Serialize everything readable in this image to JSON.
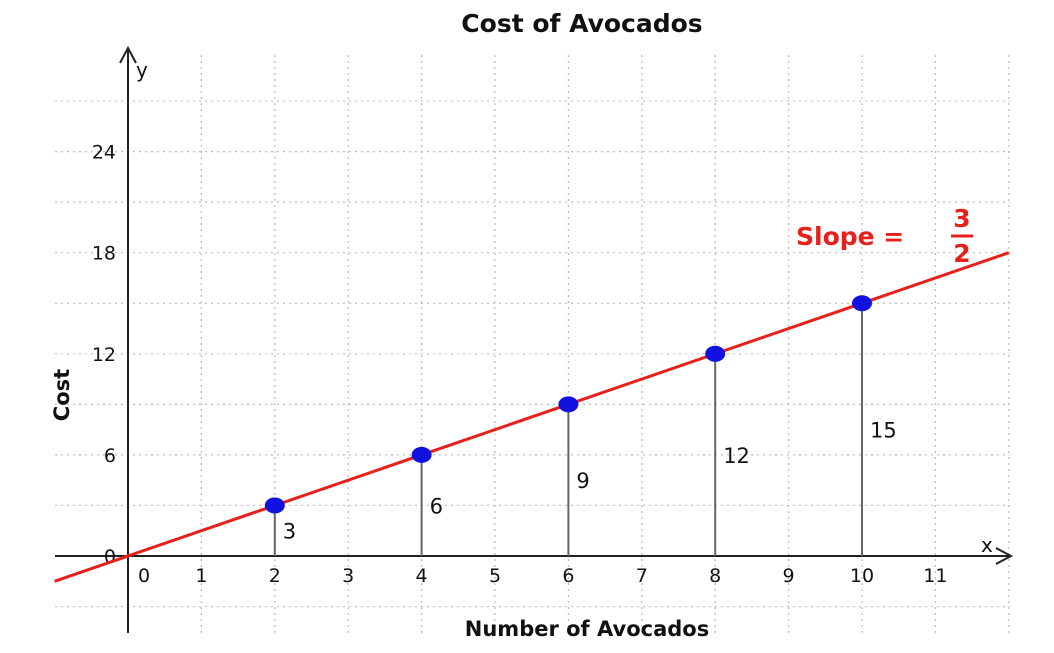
{
  "chart_data": {
    "type": "scatter",
    "title": "Cost of Avocados",
    "xlabel": "Number of Avocados",
    "ylabel": "Cost",
    "x_axis_name": "x",
    "y_axis_name": "y",
    "xlim": [
      -1,
      12
    ],
    "ylim": [
      -4,
      29
    ],
    "x_ticks": [
      0,
      1,
      2,
      3,
      4,
      5,
      6,
      7,
      8,
      9,
      10,
      11
    ],
    "y_ticks": [
      0,
      6,
      12,
      18,
      24
    ],
    "grid_x": [
      1,
      2,
      3,
      4,
      5,
      6,
      7,
      8,
      9,
      10,
      11,
      12
    ],
    "grid_y": [
      -3,
      3,
      6,
      9,
      12,
      15,
      18,
      21,
      24,
      27
    ],
    "grid": true,
    "series": [
      {
        "x": [
          2,
          4,
          6,
          8,
          10
        ],
        "y": [
          3,
          6,
          9,
          12,
          15
        ],
        "labels": [
          "3",
          "6",
          "9",
          "12",
          "15"
        ]
      }
    ],
    "line": {
      "slope": 1.5,
      "intercept": 0,
      "x_range": [
        -1,
        12
      ],
      "label_text": "Slope =",
      "label_numerator": "3",
      "label_denominator": "2"
    },
    "colors": {
      "line": "#e8201c",
      "points": "#1212e0",
      "grid": "#bdbdbd",
      "axis": "#222222",
      "drop_lines": "#666666"
    }
  }
}
